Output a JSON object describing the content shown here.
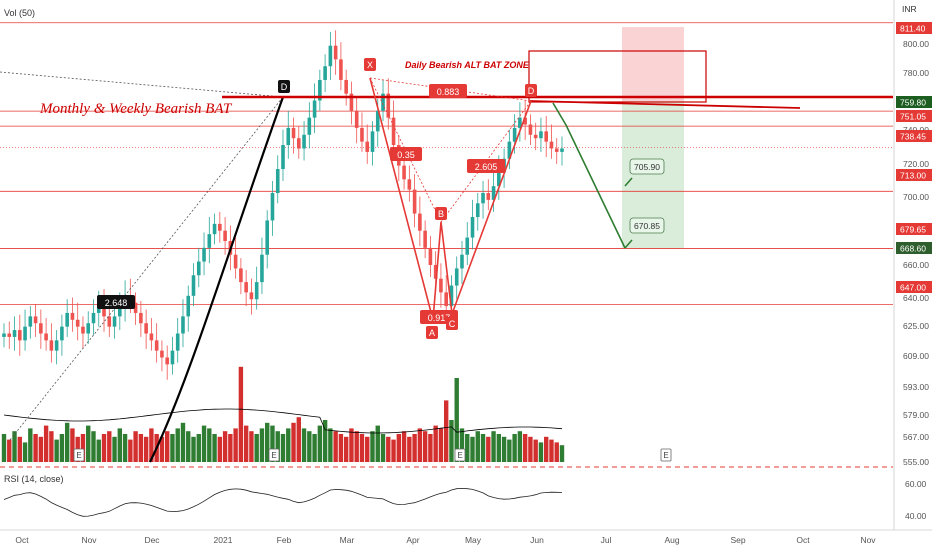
{
  "header": {
    "volume_indicator": "Vol (50)",
    "rsi_indicator": "RSI (14, close)",
    "currency": "INR"
  },
  "annotations": {
    "title_left": "Monthly & Weekly Bearish BAT",
    "title_zone": "Daily Bearish ALT BAT ZONE",
    "ratio_xb": "0.35",
    "ratio_xd": "0.883",
    "ratio_ac": "0.917",
    "ratio_bd": "2.605",
    "ratio_left": "2.648",
    "target_1": "705.90",
    "target_2": "670.85",
    "point_labels": [
      "X",
      "A",
      "B",
      "C",
      "D"
    ],
    "monthly_d_label": "D",
    "earnings_label": "E"
  },
  "colors": {
    "up": "#26a69a",
    "down": "#ef5350",
    "volume_up": "#2e7d32",
    "volume_down": "#d32f2f",
    "red_line": "#e53935",
    "bat_line": "#cc0000",
    "target_arrow": "#2e7d32",
    "zone_red": "#f8b4b4",
    "zone_green": "#c8e6c9",
    "label_bg": "#e53935",
    "axis_text": "#555555"
  },
  "chart_data": {
    "type": "candlestick",
    "ylim": [
      555,
      820
    ],
    "price_axis_ticks": [
      "800.00",
      "780.00",
      "760.00",
      "740.00",
      "720.00",
      "700.00",
      "680.00",
      "660.00",
      "640.00",
      "625.00",
      "609.00",
      "593.00",
      "579.00",
      "567.00",
      "555.00"
    ],
    "highlighted_prices": [
      {
        "label": "811.40"
      },
      {
        "label": "759.80"
      },
      {
        "label": "751.05"
      },
      {
        "label": "738.45"
      },
      {
        "label": "713.00"
      },
      {
        "label": "679.65"
      },
      {
        "label": "668.60"
      },
      {
        "label": "647.00"
      }
    ],
    "horizontal_levels": [
      811.4,
      759.8,
      751.05,
      713.0,
      679.65,
      647.0
    ],
    "rsi_ticks": [
      "60.00",
      "40.00"
    ],
    "x_labels": [
      "Oct",
      "Nov",
      "Dec",
      "2021",
      "Feb",
      "Mar",
      "Apr",
      "May",
      "Jun",
      "Jul",
      "Aug",
      "Sep",
      "Oct",
      "Nov"
    ],
    "close_prices": [
      630,
      628,
      632,
      626,
      634,
      640,
      636,
      630,
      626,
      620,
      626,
      634,
      642,
      638,
      634,
      630,
      636,
      642,
      646,
      640,
      634,
      640,
      646,
      652,
      648,
      642,
      636,
      630,
      626,
      620,
      616,
      612,
      620,
      630,
      640,
      652,
      664,
      672,
      680,
      688,
      694,
      690,
      684,
      676,
      668,
      660,
      654,
      650,
      660,
      676,
      696,
      712,
      726,
      740,
      750,
      744,
      738,
      746,
      756,
      766,
      778,
      786,
      798,
      790,
      778,
      770,
      760,
      750,
      742,
      736,
      748,
      760,
      770,
      756,
      740,
      728,
      720,
      714,
      700,
      690,
      680,
      670,
      662,
      654,
      646,
      658,
      668,
      676,
      686,
      698,
      706,
      712,
      708,
      716,
      724,
      732,
      742,
      750,
      756,
      752,
      746,
      744,
      748,
      742,
      738,
      736,
      738
    ],
    "volume": [
      1.0,
      0.8,
      1.1,
      0.9,
      0.7,
      1.2,
      1.0,
      0.9,
      1.3,
      1.1,
      0.8,
      1.0,
      1.4,
      1.2,
      0.9,
      1.0,
      1.3,
      1.1,
      0.8,
      1.0,
      1.1,
      0.9,
      1.2,
      1.0,
      0.8,
      1.1,
      1.0,
      0.9,
      1.2,
      1.0,
      0.9,
      1.1,
      1.0,
      1.2,
      1.4,
      1.1,
      0.9,
      1.0,
      1.3,
      1.2,
      1.0,
      0.9,
      1.1,
      1.0,
      1.2,
      3.4,
      1.3,
      1.1,
      1.0,
      1.2,
      1.4,
      1.3,
      1.1,
      1.0,
      1.2,
      1.4,
      1.6,
      1.2,
      1.1,
      1.0,
      1.3,
      1.5,
      1.2,
      1.1,
      1.0,
      0.9,
      1.2,
      1.1,
      1.0,
      0.9,
      1.1,
      1.3,
      1.0,
      0.9,
      0.8,
      1.0,
      1.1,
      0.9,
      1.0,
      1.2,
      1.1,
      1.0,
      1.3,
      1.2,
      2.2,
      1.5,
      3.0,
      1.2,
      1.0,
      0.9,
      1.1,
      1.0,
      0.9,
      1.1,
      1.0,
      0.9,
      0.8,
      1.0,
      1.1,
      1.0,
      0.9,
      0.8,
      0.7,
      0.9,
      0.8,
      0.7,
      0.6
    ]
  }
}
